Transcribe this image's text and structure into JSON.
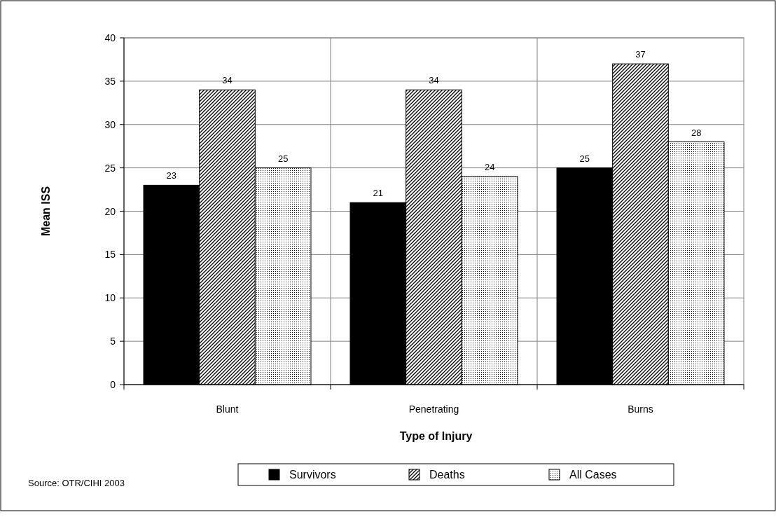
{
  "chart_data": {
    "type": "bar",
    "xlabel": "Type of Injury",
    "ylabel": "Mean ISS",
    "categories": [
      "Blunt",
      "Penetrating",
      "Burns"
    ],
    "series": [
      {
        "name": "Survivors",
        "color": "#000000",
        "values": [
          23,
          21,
          25
        ]
      },
      {
        "name": "Deaths",
        "color": "#000000",
        "values": [
          34,
          34,
          37
        ]
      },
      {
        "name": "All Cases",
        "color": "#000000",
        "values": [
          25,
          24,
          28
        ]
      }
    ],
    "ylim": [
      0,
      40
    ],
    "yticks": [
      0,
      5,
      10,
      15,
      20,
      25,
      30,
      35,
      40
    ],
    "grid": true,
    "legend": "bottom",
    "data_labels": true,
    "annotations": [
      "Source: OTR/CIHI 2003"
    ]
  }
}
